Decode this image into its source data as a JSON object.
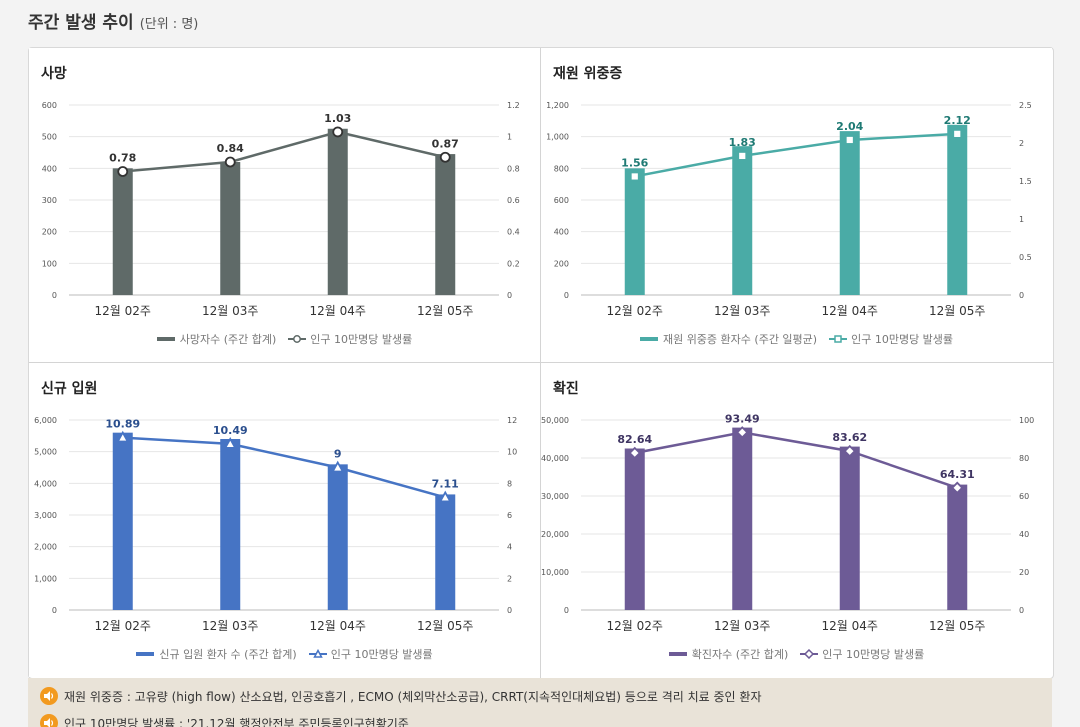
{
  "header": {
    "title": "주간 발생 추이",
    "unit": "(단위 : 명)"
  },
  "charts": [
    {
      "id": "death",
      "title": "사망",
      "bar_color": "#5f6a68",
      "line_color": "#5f6a68",
      "label_color": "#333333",
      "marker": "circle",
      "legend_bar": "사망자수 (주간 합계)",
      "legend_line": "인구 10만명당 발생률"
    },
    {
      "id": "severe",
      "title": "재원 위중증",
      "bar_color": "#4aaba6",
      "line_color": "#4aaba6",
      "label_color": "#1f7a74",
      "marker": "square",
      "legend_bar": "재원 위중증 환자수 (주간 일평균)",
      "legend_line": "인구 10만명당 발생률"
    },
    {
      "id": "admission",
      "title": "신규 입원",
      "bar_color": "#4674c4",
      "line_color": "#4674c4",
      "label_color": "#2b4f8e",
      "marker": "triangle",
      "legend_bar": "신규 입원 환자 수 (주간 합계)",
      "legend_line": "인구 10만명당 발생률"
    },
    {
      "id": "confirmed",
      "title": "확진",
      "bar_color": "#6d5b96",
      "line_color": "#6d5b96",
      "label_color": "#3f3563",
      "marker": "diamond",
      "legend_bar": "확진자수 (주간 합계)",
      "legend_line": "인구 10만명당 발생률"
    }
  ],
  "chart_data": [
    {
      "type": "bar+line",
      "title": "사망",
      "categories": [
        "12월 02주",
        "12월 03주",
        "12월 04주",
        "12월 05주"
      ],
      "series": [
        {
          "name": "사망자수 (주간 합계)",
          "axis": "left",
          "values": [
            400,
            420,
            525,
            445
          ]
        },
        {
          "name": "인구 10만명당 발생률",
          "axis": "right",
          "values": [
            0.78,
            0.84,
            1.03,
            0.87
          ],
          "labels": [
            "0.78",
            "0.84",
            "1.03",
            "0.87"
          ]
        }
      ],
      "ylim_left": [
        0,
        600
      ],
      "yticks_left": [
        "0",
        "100",
        "200",
        "300",
        "400",
        "500",
        "600"
      ],
      "ylim_right": [
        0,
        1.2
      ],
      "yticks_right": [
        "0",
        "0.2",
        "0.4",
        "0.6",
        "0.8",
        "1",
        "1.2"
      ]
    },
    {
      "type": "bar+line",
      "title": "재원 위중증",
      "categories": [
        "12월 02주",
        "12월 03주",
        "12월 04주",
        "12월 05주"
      ],
      "series": [
        {
          "name": "재원 위중증 환자수 (주간 일평균)",
          "axis": "left",
          "values": [
            800,
            940,
            1035,
            1075
          ]
        },
        {
          "name": "인구 10만명당 발생률",
          "axis": "right",
          "values": [
            1.56,
            1.83,
            2.04,
            2.12
          ],
          "labels": [
            "1.56",
            "1.83",
            "2.04",
            "2.12"
          ]
        }
      ],
      "ylim_left": [
        0,
        1200
      ],
      "yticks_left": [
        "0",
        "200",
        "400",
        "600",
        "800",
        "1,000",
        "1,200"
      ],
      "ylim_right": [
        0,
        2.5
      ],
      "yticks_right": [
        "0",
        "0.5",
        "1",
        "1.5",
        "2",
        "2.5"
      ]
    },
    {
      "type": "bar+line",
      "title": "신규 입원",
      "categories": [
        "12월 02주",
        "12월 03주",
        "12월 04주",
        "12월 05주"
      ],
      "series": [
        {
          "name": "신규 입원 환자 수 (주간 합계)",
          "axis": "left",
          "values": [
            5600,
            5400,
            4600,
            3650
          ]
        },
        {
          "name": "인구 10만명당 발생률",
          "axis": "right",
          "values": [
            10.89,
            10.49,
            9,
            7.11
          ],
          "labels": [
            "10.89",
            "10.49",
            "9",
            "7.11"
          ]
        }
      ],
      "ylim_left": [
        0,
        6000
      ],
      "yticks_left": [
        "0",
        "1,000",
        "2,000",
        "3,000",
        "4,000",
        "5,000",
        "6,000"
      ],
      "ylim_right": [
        0,
        12
      ],
      "yticks_right": [
        "0",
        "2",
        "4",
        "6",
        "8",
        "10",
        "12"
      ]
    },
    {
      "type": "bar+line",
      "title": "확진",
      "categories": [
        "12월 02주",
        "12월 03주",
        "12월 04주",
        "12월 05주"
      ],
      "series": [
        {
          "name": "확진자수 (주간 합계)",
          "axis": "left",
          "values": [
            42500,
            48000,
            43000,
            33000
          ]
        },
        {
          "name": "인구 10만명당 발생률",
          "axis": "right",
          "values": [
            82.64,
            93.49,
            83.62,
            64.31
          ],
          "labels": [
            "82.64",
            "93.49",
            "83.62",
            "64.31"
          ]
        }
      ],
      "ylim_left": [
        0,
        50000
      ],
      "yticks_left": [
        "0",
        "10,000",
        "20,000",
        "30,000",
        "40,000",
        "50,000"
      ],
      "ylim_right": [
        0,
        100
      ],
      "yticks_right": [
        "0",
        "20",
        "40",
        "60",
        "80",
        "100"
      ]
    }
  ],
  "notes": [
    "재원 위중증 : 고유량 (high flow) 산소요법, 인공호흡기 , ECMO (체외막산소공급), CRRT(지속적인대체요법) 등으로 격리 치료 중인 환자",
    "인구 10만명당 발생률 : '21.12월 행정안전부 주민등록인구현황기준"
  ]
}
